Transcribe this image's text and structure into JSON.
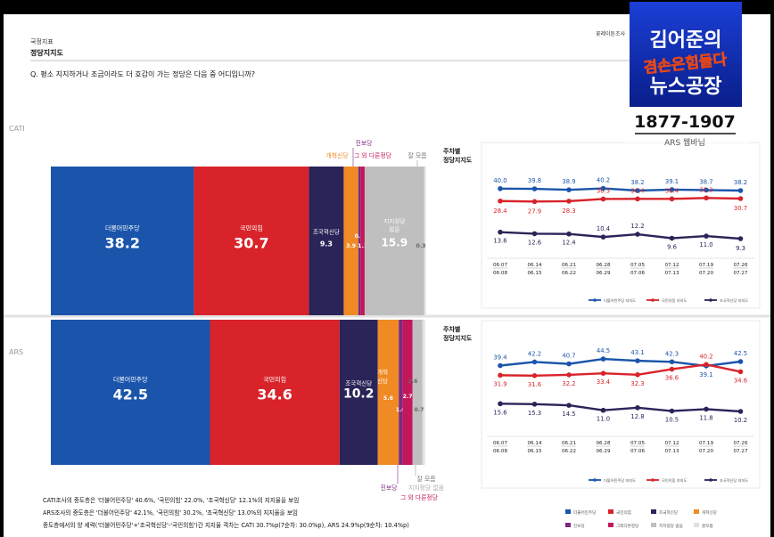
{
  "header": {
    "section": "국정지표",
    "title": "정당지지도",
    "question": "Q. 평소 지지하거나 조금이라도 더 호감이 가는 정당은 다음 중 어디입니까?",
    "source": "꽃레이튼조사"
  },
  "logo": {
    "line1": "김어준의",
    "line2": "겸손은힘들다",
    "line3": "뉴스공장",
    "phone": "1877-1907",
    "panel": "ARS 웹바닙"
  },
  "colors": {
    "dem": "#1a55ab",
    "ppp": "#d8232a",
    "rebuild": "#2b2459",
    "reform": "#f08a24",
    "progressive": "#7b2a83",
    "other": "#c2185b",
    "none": "#bfbfbf",
    "unsure": "#e0e0e0"
  },
  "chart_data": [
    {
      "type": "bar",
      "stacked": true,
      "title": "CATI",
      "categories": [
        "더불어민주당",
        "국민의힘",
        "조국혁신당",
        "개혁신당",
        "진보당",
        "그 외 다른정당",
        "지지정당 없음",
        "잘 모름"
      ],
      "values": [
        38.2,
        30.7,
        9.3,
        3.9,
        0.6,
        1.1,
        15.9,
        0.3
      ],
      "value_labels": [
        "38.2",
        "30.7",
        "9.3",
        "3.9",
        "0.6",
        "1.1",
        "15.9",
        "0.3"
      ],
      "top_labels": [
        "진보당",
        "개혁신당",
        "그 외 다른정당",
        "잘 모름"
      ]
    },
    {
      "type": "bar",
      "stacked": true,
      "title": "ARS",
      "categories": [
        "더불어민주당",
        "국민의힘",
        "조국혁신당",
        "개혁신당",
        "진보당",
        "그 외 다른정당",
        "지지정당 없음",
        "잘 모름"
      ],
      "values": [
        42.5,
        34.6,
        10.2,
        5.6,
        1.0,
        2.7,
        2.6,
        0.7
      ],
      "value_labels": [
        "42.5",
        "34.6",
        "10.2",
        "5.6",
        "1.0",
        "2.7",
        "2.6",
        "0.7"
      ],
      "bottom_labels": [
        "진보당",
        "잘 모름",
        "지지정당 없음",
        "그 외 다른정당"
      ]
    },
    {
      "type": "line",
      "title": "주차별 정당지지도",
      "panel": "CATI",
      "x": [
        "06.07 06.08",
        "06.14 06.15",
        "06.21 06.22",
        "06.28 06.29",
        "07.05 07.06",
        "07.12 07.13",
        "07.19 07.20",
        "07.26 07.27"
      ],
      "series": [
        {
          "name": "더불어민주당 지지도",
          "values": [
            40.0,
            39.8,
            38.9,
            40.2,
            38.2,
            39.1,
            38.7,
            38.2
          ]
        },
        {
          "name": "국민의힘 지지도",
          "values": [
            28.4,
            27.9,
            28.3,
            30.3,
            30.4,
            30.4,
            31.3,
            30.7
          ]
        },
        {
          "name": "조국혁신당 지지도",
          "values": [
            13.6,
            12.6,
            12.4,
            10.4,
            12.2,
            9.6,
            11.0,
            9.3
          ]
        }
      ]
    },
    {
      "type": "line",
      "title": "주차별 정당지지도",
      "panel": "ARS",
      "x": [
        "06.07 06.08",
        "06.14 06.15",
        "06.21 06.22",
        "06.28 06.29",
        "07.05 07.06",
        "07.12 07.13",
        "07.19 07.20",
        "07.26 07.27"
      ],
      "series": [
        {
          "name": "더불어민주당 지지도",
          "values": [
            39.4,
            42.2,
            40.7,
            44.5,
            43.1,
            42.3,
            39.1,
            42.5
          ]
        },
        {
          "name": "국민의힘 지지도",
          "values": [
            31.9,
            31.6,
            32.2,
            33.4,
            32.3,
            36.6,
            40.2,
            34.6
          ]
        },
        {
          "name": "조국혁신당 지지도",
          "values": [
            15.6,
            15.3,
            14.5,
            11.0,
            12.8,
            10.5,
            11.8,
            10.2
          ]
        }
      ]
    }
  ],
  "week_labels": [
    [
      "06.07",
      "06.08"
    ],
    [
      "06.14",
      "06.15"
    ],
    [
      "06.21",
      "06.22"
    ],
    [
      "06.28",
      "06.29"
    ],
    [
      "07.05",
      "07.06"
    ],
    [
      "07.12",
      "07.13"
    ],
    [
      "07.19",
      "07.20"
    ],
    [
      "07.26",
      "07.27"
    ]
  ],
  "line_panel_title": [
    "주차별",
    "정당지지도"
  ],
  "legend_short": [
    "더불어민주당 지지도",
    "국민의힘 지지도",
    "조국혁신당 지지도"
  ],
  "bottom_legend": [
    "더불어민주당",
    "국민의힘",
    "조국혁신당",
    "개혁신당",
    "진보당",
    "그외다른정당",
    "지지정당 없음",
    "잘모름"
  ],
  "notes": [
    "CATI조사의 중도층은 '더불어민주당' 40.6%, '국민의힘' 22.0%, '조국혁신당' 12.1%의 지지율을 보임",
    "ARS조사의 중도층은 '더불어민주당' 42.1%, '국민의힘' 30.2%, '조국혁신당' 13.0%의 지지율을 보임",
    "중도층에서의 양 세력('더불어민주당'+'조국혁신당'-'국민의힘')간 지지율 격차는 CATI 30.7%p(7순차: 30.0%p), ARS 24.9%p(9순차: 10.4%p)"
  ]
}
